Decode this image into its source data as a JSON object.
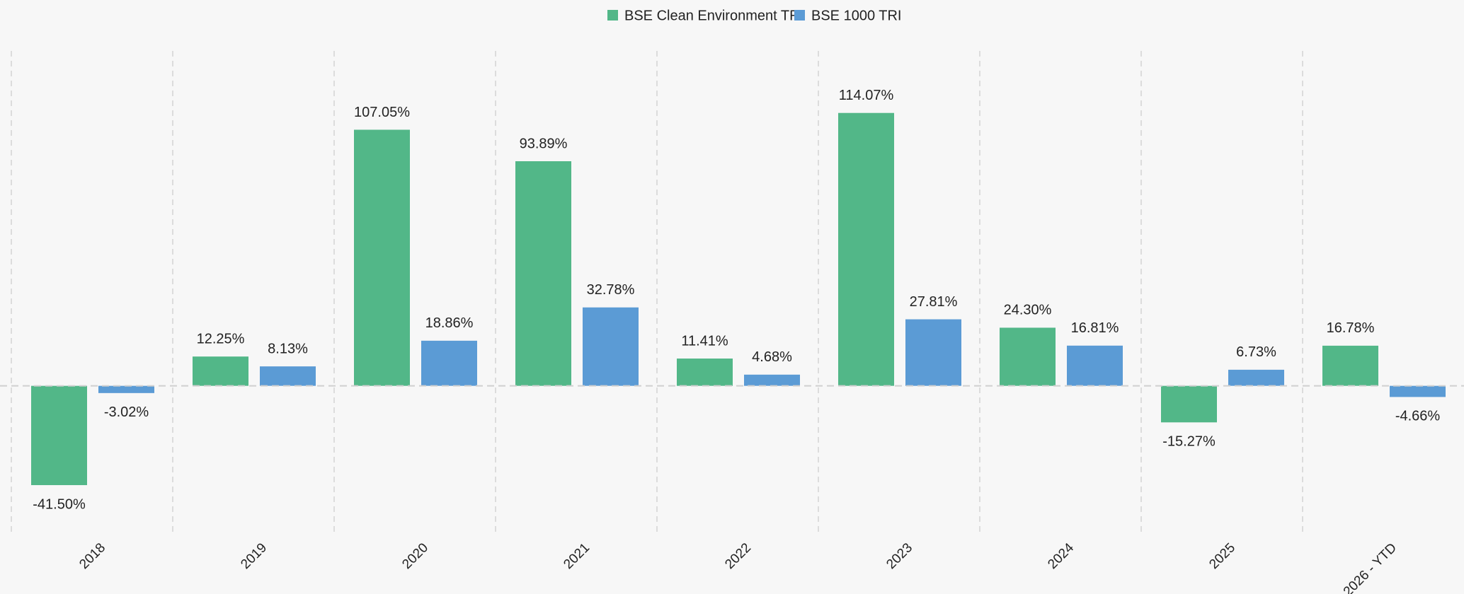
{
  "chart_data": {
    "type": "bar",
    "categories": [
      "2018",
      "2019",
      "2020",
      "2021",
      "2022",
      "2023",
      "2024",
      "2025",
      "2026 - YTD"
    ],
    "series": [
      {
        "name": "BSE Clean Environment TRI",
        "color": "#52b788",
        "values": [
          -41.5,
          12.25,
          107.05,
          93.89,
          11.41,
          114.07,
          24.3,
          -15.27,
          16.78
        ],
        "value_labels": [
          "-41.50%",
          "12.25%",
          "107.05%",
          "93.89%",
          "11.41%",
          "114.07%",
          "24.30%",
          "-15.27%",
          "16.78%"
        ]
      },
      {
        "name": "BSE 1000 TRI",
        "color": "#5b9bd5",
        "values": [
          -3.02,
          8.13,
          18.86,
          32.78,
          4.68,
          27.81,
          16.81,
          6.73,
          -4.66
        ],
        "value_labels": [
          "-3.02%",
          "8.13%",
          "18.86%",
          "32.78%",
          "4.68%",
          "27.81%",
          "16.81%",
          "6.73%",
          "-4.66%"
        ]
      }
    ],
    "ylim": [
      -61,
      140
    ],
    "grid": true,
    "legend": "top"
  }
}
